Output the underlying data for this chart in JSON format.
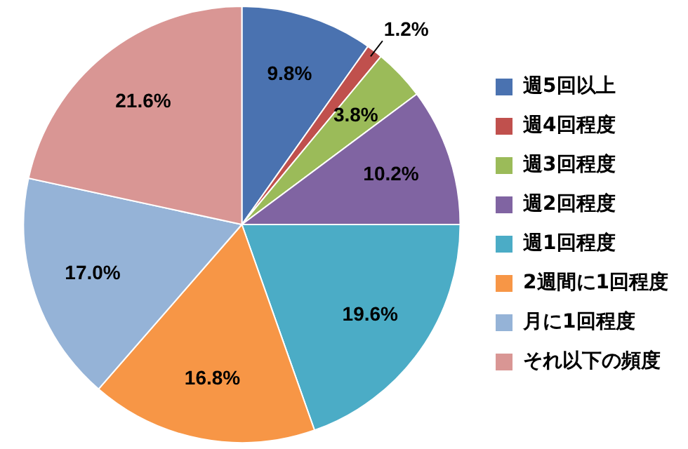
{
  "chart_data": {
    "type": "pie",
    "categories": [
      "週5回以上",
      "週4回程度",
      "週3回程度",
      "週2回程度",
      "週1回程度",
      "2週間に1回程度",
      "月に1回程度",
      "それ以下の頻度"
    ],
    "values": [
      9.8,
      1.2,
      3.8,
      10.2,
      19.6,
      16.8,
      17.0,
      21.6
    ],
    "colors": [
      "#4a72b0",
      "#c0504d",
      "#9bbb59",
      "#8064a2",
      "#4bacc6",
      "#f79646",
      "#95b3d7",
      "#d99694"
    ],
    "value_labels": [
      "9.8%",
      "1.2%",
      "3.8%",
      "10.2%",
      "19.6%",
      "16.8%",
      "17.0%",
      "21.6%"
    ],
    "legend": "right"
  }
}
